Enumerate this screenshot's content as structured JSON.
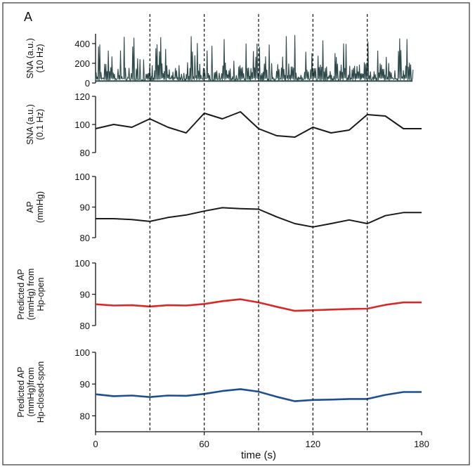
{
  "panel_label": "A",
  "colors": {
    "black": "#1a1a1a",
    "red": "#d62a2a",
    "blue": "#1f4f8f",
    "sna_raw": "#2f4a4a"
  },
  "chart_data": [
    {
      "type": "line",
      "id": "sna10",
      "ylabel_lines": [
        "SNA (a.u.)",
        "(10 Hz)"
      ],
      "ylim": [
        0,
        500
      ],
      "yticks": [
        0,
        200,
        400
      ],
      "xlim": [
        0,
        180
      ],
      "series": [
        {
          "color_key": "sna_raw",
          "style": "spiky",
          "x_start": 0,
          "x_end": 175,
          "baseline": 20,
          "typical_peak": 200,
          "max_peak": 490
        }
      ]
    },
    {
      "type": "line",
      "id": "sna01",
      "ylabel_lines": [
        "SNA (a.u.)",
        "(0.1 Hz)"
      ],
      "ylim": [
        80,
        120
      ],
      "yticks": [
        80,
        100,
        120
      ],
      "xlim": [
        0,
        180
      ],
      "series": [
        {
          "color_key": "black",
          "x": [
            0,
            10,
            20,
            30,
            40,
            50,
            60,
            70,
            80,
            90,
            100,
            110,
            120,
            130,
            140,
            150,
            160,
            170,
            180
          ],
          "y": [
            97,
            100,
            98,
            104,
            98,
            94,
            108,
            104,
            109,
            97,
            92,
            91,
            98,
            94,
            96,
            107,
            106,
            97,
            97
          ]
        }
      ]
    },
    {
      "type": "line",
      "id": "ap",
      "ylabel_lines": [
        "AP",
        "(mmHg)"
      ],
      "ylim": [
        80,
        100
      ],
      "yticks": [
        80,
        90,
        100
      ],
      "xlim": [
        0,
        180
      ],
      "series": [
        {
          "color_key": "black",
          "x": [
            0,
            10,
            20,
            30,
            40,
            50,
            60,
            70,
            80,
            90,
            100,
            110,
            120,
            130,
            140,
            150,
            160,
            170,
            180
          ],
          "y": [
            86.2,
            86.2,
            85.9,
            85.3,
            86.6,
            87.4,
            88.7,
            89.8,
            89.5,
            89.3,
            86.8,
            84.6,
            83.5,
            84.6,
            85.8,
            84.6,
            87.2,
            88.2,
            88.2
          ]
        }
      ]
    },
    {
      "type": "line",
      "id": "pred_open",
      "ylabel_lines": [
        "Predicted AP",
        "(mmHg) from",
        "Hp-open"
      ],
      "ylim": [
        80,
        100
      ],
      "yticks": [
        80,
        90,
        100
      ],
      "xlim": [
        0,
        180
      ],
      "series": [
        {
          "color_key": "red",
          "x": [
            0,
            10,
            20,
            30,
            40,
            50,
            60,
            70,
            80,
            90,
            100,
            110,
            120,
            130,
            140,
            150,
            160,
            170,
            180
          ],
          "y": [
            86.8,
            86.4,
            86.5,
            86.1,
            86.5,
            86.4,
            86.9,
            87.8,
            88.4,
            87.4,
            86.0,
            84.7,
            84.9,
            85.1,
            85.3,
            85.4,
            86.6,
            87.4,
            87.4
          ]
        }
      ]
    },
    {
      "type": "line",
      "id": "pred_closed",
      "ylabel_lines": [
        "Predicted AP",
        "(mmHg)from",
        "Hp-closed-spon"
      ],
      "ylim": [
        75,
        100
      ],
      "yticks": [
        80,
        90,
        100
      ],
      "xlim": [
        0,
        180
      ],
      "xticks": [
        0,
        60,
        120,
        180
      ],
      "xlabel": "time (s)",
      "series": [
        {
          "color_key": "blue",
          "x": [
            0,
            10,
            20,
            30,
            40,
            50,
            60,
            70,
            80,
            90,
            100,
            110,
            120,
            130,
            140,
            150,
            160,
            170,
            180
          ],
          "y": [
            86.8,
            86.2,
            86.4,
            85.9,
            86.4,
            86.3,
            86.9,
            87.8,
            88.4,
            87.6,
            86.0,
            84.6,
            85.0,
            85.1,
            85.3,
            85.3,
            86.6,
            87.5,
            87.5
          ]
        }
      ]
    }
  ],
  "vlines_x": [
    30,
    60,
    90,
    120,
    150
  ]
}
